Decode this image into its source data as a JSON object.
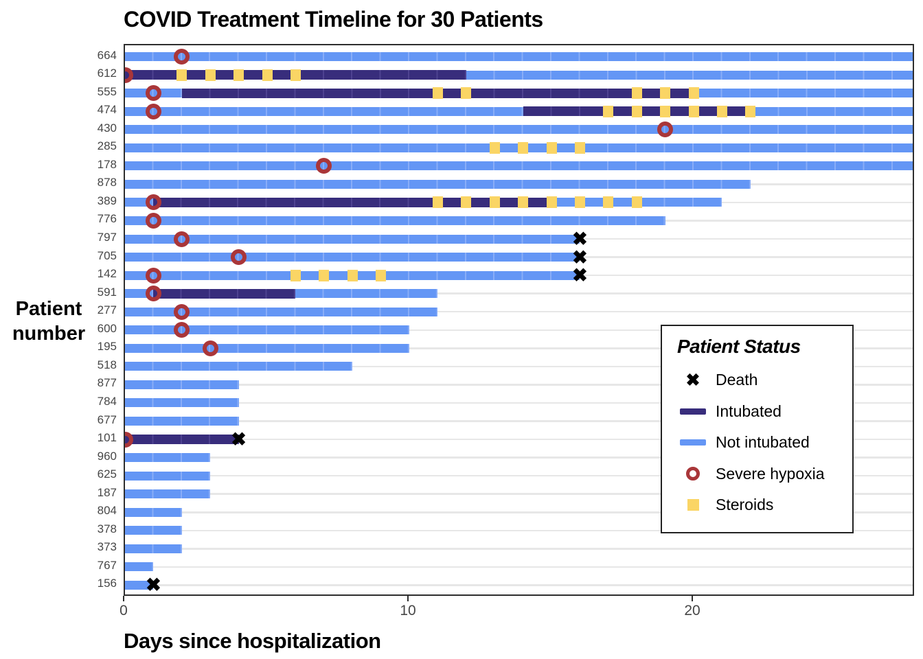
{
  "title": "COVID Treatment Timeline for 30 Patients",
  "axes": {
    "x_label": "Days since hospitalization",
    "y_label_line1": "Patient",
    "y_label_line2": "number"
  },
  "legend": {
    "title": "Patient Status",
    "items": [
      {
        "key": "death",
        "label": "Death"
      },
      {
        "key": "intubated",
        "label": "Intubated"
      },
      {
        "key": "not_intubated",
        "label": "Not intubated"
      },
      {
        "key": "hypoxia",
        "label": "Severe hypoxia"
      },
      {
        "key": "steroids",
        "label": "Steroids"
      }
    ]
  },
  "colors": {
    "not_intubated": "#6496F5",
    "not_intubated_stripe": "#89ADF8",
    "intubated": "#382D7C",
    "intubated_stripe": "#4E4291",
    "steroids": "#FAD565",
    "hypoxia": "#A93639",
    "death": "#000000",
    "gridline": "#E7E7E7",
    "panel_border": "#2E2E2E",
    "tick_text": "#474747"
  },
  "chart_data": {
    "type": "bar",
    "subtype": "horizontal-timeline-gantt",
    "title": "COVID Treatment Timeline for 30 Patients",
    "xlabel": "Days since hospitalization",
    "ylabel": "Patient number",
    "xlim": [
      0,
      27.8
    ],
    "x_ticks": [
      0,
      10,
      20
    ],
    "grid": "horizontal-row-lines-only",
    "legend_position": "inside-right",
    "status_colors": {
      "not_intubated": "blue",
      "intubated": "dark-purple"
    },
    "patients": [
      {
        "id": "664",
        "segments": [
          {
            "start": 0,
            "end": 27.8,
            "status": "not_intubated"
          }
        ],
        "hypoxia": [
          2
        ],
        "steroids": [],
        "death": null
      },
      {
        "id": "612",
        "segments": [
          {
            "start": 0,
            "end": 12,
            "status": "intubated"
          },
          {
            "start": 12,
            "end": 27.8,
            "status": "not_intubated"
          }
        ],
        "hypoxia": [
          0
        ],
        "steroids": [
          2,
          3,
          4,
          5,
          6
        ],
        "death": null
      },
      {
        "id": "555",
        "segments": [
          {
            "start": 0,
            "end": 2,
            "status": "not_intubated"
          },
          {
            "start": 2,
            "end": 20,
            "status": "intubated"
          },
          {
            "start": 20,
            "end": 27.8,
            "status": "not_intubated"
          }
        ],
        "hypoxia": [
          1
        ],
        "steroids": [
          11,
          12,
          18,
          19,
          20
        ],
        "death": null
      },
      {
        "id": "474",
        "segments": [
          {
            "start": 0,
            "end": 14,
            "status": "not_intubated"
          },
          {
            "start": 14,
            "end": 22,
            "status": "intubated"
          },
          {
            "start": 22,
            "end": 27.8,
            "status": "not_intubated"
          }
        ],
        "hypoxia": [
          1
        ],
        "steroids": [
          17,
          18,
          19,
          20,
          21,
          22
        ],
        "death": null
      },
      {
        "id": "430",
        "segments": [
          {
            "start": 0,
            "end": 27.8,
            "status": "not_intubated"
          }
        ],
        "hypoxia": [
          19
        ],
        "steroids": [],
        "death": null
      },
      {
        "id": "285",
        "segments": [
          {
            "start": 0,
            "end": 27.8,
            "status": "not_intubated"
          }
        ],
        "hypoxia": [],
        "steroids": [
          13,
          14,
          15,
          16
        ],
        "death": null
      },
      {
        "id": "178",
        "segments": [
          {
            "start": 0,
            "end": 27.8,
            "status": "not_intubated"
          }
        ],
        "hypoxia": [
          7
        ],
        "steroids": [],
        "death": null
      },
      {
        "id": "878",
        "segments": [
          {
            "start": 0,
            "end": 22,
            "status": "not_intubated"
          }
        ],
        "hypoxia": [],
        "steroids": [],
        "death": null
      },
      {
        "id": "389",
        "segments": [
          {
            "start": 0,
            "end": 1,
            "status": "not_intubated"
          },
          {
            "start": 1,
            "end": 15,
            "status": "intubated"
          },
          {
            "start": 15,
            "end": 21,
            "status": "not_intubated"
          }
        ],
        "hypoxia": [
          1
        ],
        "steroids": [
          11,
          12,
          13,
          14,
          15,
          16,
          17,
          18
        ],
        "death": null
      },
      {
        "id": "776",
        "segments": [
          {
            "start": 0,
            "end": 19,
            "status": "not_intubated"
          }
        ],
        "hypoxia": [
          1
        ],
        "steroids": [],
        "death": null
      },
      {
        "id": "797",
        "segments": [
          {
            "start": 0,
            "end": 16,
            "status": "not_intubated"
          }
        ],
        "hypoxia": [
          2
        ],
        "steroids": [],
        "death": 16
      },
      {
        "id": "705",
        "segments": [
          {
            "start": 0,
            "end": 16,
            "status": "not_intubated"
          }
        ],
        "hypoxia": [
          4
        ],
        "steroids": [],
        "death": 16
      },
      {
        "id": "142",
        "segments": [
          {
            "start": 0,
            "end": 16,
            "status": "not_intubated"
          }
        ],
        "hypoxia": [
          1
        ],
        "steroids": [
          6,
          7,
          8,
          9
        ],
        "death": 16
      },
      {
        "id": "591",
        "segments": [
          {
            "start": 0,
            "end": 1,
            "status": "not_intubated"
          },
          {
            "start": 1,
            "end": 6,
            "status": "intubated"
          },
          {
            "start": 6,
            "end": 11,
            "status": "not_intubated"
          }
        ],
        "hypoxia": [
          1
        ],
        "steroids": [],
        "death": null
      },
      {
        "id": "277",
        "segments": [
          {
            "start": 0,
            "end": 11,
            "status": "not_intubated"
          }
        ],
        "hypoxia": [
          2
        ],
        "steroids": [],
        "death": null
      },
      {
        "id": "600",
        "segments": [
          {
            "start": 0,
            "end": 10,
            "status": "not_intubated"
          }
        ],
        "hypoxia": [
          2
        ],
        "steroids": [],
        "death": null
      },
      {
        "id": "195",
        "segments": [
          {
            "start": 0,
            "end": 10,
            "status": "not_intubated"
          }
        ],
        "hypoxia": [
          3
        ],
        "steroids": [],
        "death": null
      },
      {
        "id": "518",
        "segments": [
          {
            "start": 0,
            "end": 8,
            "status": "not_intubated"
          }
        ],
        "hypoxia": [],
        "steroids": [],
        "death": null
      },
      {
        "id": "877",
        "segments": [
          {
            "start": 0,
            "end": 4,
            "status": "not_intubated"
          }
        ],
        "hypoxia": [],
        "steroids": [],
        "death": null
      },
      {
        "id": "784",
        "segments": [
          {
            "start": 0,
            "end": 4,
            "status": "not_intubated"
          }
        ],
        "hypoxia": [],
        "steroids": [],
        "death": null
      },
      {
        "id": "677",
        "segments": [
          {
            "start": 0,
            "end": 4,
            "status": "not_intubated"
          }
        ],
        "hypoxia": [],
        "steroids": [],
        "death": null
      },
      {
        "id": "101",
        "segments": [
          {
            "start": 0,
            "end": 4,
            "status": "intubated"
          }
        ],
        "hypoxia": [
          0
        ],
        "steroids": [],
        "death": 4
      },
      {
        "id": "960",
        "segments": [
          {
            "start": 0,
            "end": 3,
            "status": "not_intubated"
          }
        ],
        "hypoxia": [],
        "steroids": [],
        "death": null
      },
      {
        "id": "625",
        "segments": [
          {
            "start": 0,
            "end": 3,
            "status": "not_intubated"
          }
        ],
        "hypoxia": [],
        "steroids": [],
        "death": null
      },
      {
        "id": "187",
        "segments": [
          {
            "start": 0,
            "end": 3,
            "status": "not_intubated"
          }
        ],
        "hypoxia": [],
        "steroids": [],
        "death": null
      },
      {
        "id": "804",
        "segments": [
          {
            "start": 0,
            "end": 2,
            "status": "not_intubated"
          }
        ],
        "hypoxia": [],
        "steroids": [],
        "death": null
      },
      {
        "id": "378",
        "segments": [
          {
            "start": 0,
            "end": 2,
            "status": "not_intubated"
          }
        ],
        "hypoxia": [],
        "steroids": [],
        "death": null
      },
      {
        "id": "373",
        "segments": [
          {
            "start": 0,
            "end": 2,
            "status": "not_intubated"
          }
        ],
        "hypoxia": [],
        "steroids": [],
        "death": null
      },
      {
        "id": "767",
        "segments": [
          {
            "start": 0,
            "end": 1,
            "status": "not_intubated"
          }
        ],
        "hypoxia": [],
        "steroids": [],
        "death": null
      },
      {
        "id": "156",
        "segments": [
          {
            "start": 0,
            "end": 1,
            "status": "not_intubated"
          }
        ],
        "hypoxia": [],
        "steroids": [],
        "death": 1
      }
    ]
  },
  "glyphs": {
    "death": "✖"
  }
}
